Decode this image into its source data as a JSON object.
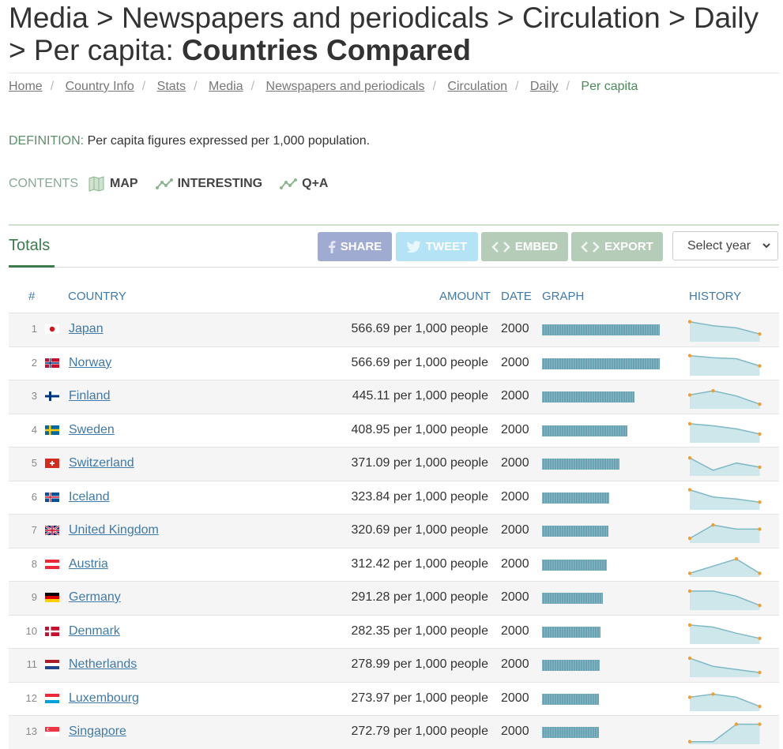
{
  "title": {
    "prefix": "Media > Newspapers and periodicals > Circulation > Daily > Per capita: ",
    "strong": "Countries Compared"
  },
  "breadcrumbs": [
    "Home",
    "Country Info",
    "Stats",
    "Media",
    "Newspapers and periodicals",
    "Circulation",
    "Daily"
  ],
  "breadcrumb_current": "Per capita",
  "definition": {
    "label": "DEFINITION:",
    "text": "Per capita figures expressed per 1,000 population."
  },
  "contents": {
    "label": "CONTENTS",
    "items": [
      "MAP",
      "INTERESTING",
      "Q+A"
    ]
  },
  "totals_label": "Totals",
  "buttons": {
    "share": "SHARE",
    "tweet": "TWEET",
    "embed": "EMBED",
    "export": "EXPORT"
  },
  "select_year": "Select year",
  "columns": {
    "num": "#",
    "country": "COUNTRY",
    "amount": "AMOUNT",
    "date": "DATE",
    "graph": "GRAPH",
    "history": "HISTORY"
  },
  "colors": {
    "accent": "#3d7a4c",
    "link": "#3f7aa8",
    "bar": "#6aa3b4",
    "share": "#a0abd1",
    "tweet": "#b3e3f5",
    "embed": "#b5cdb8"
  },
  "rows": [
    {
      "rank": "1",
      "country": "Japan",
      "flag": "japan",
      "value": 566.69,
      "amount": "566.69 per 1,000 people",
      "date": "2000",
      "history": [
        0.9,
        0.7,
        0.6,
        0.3
      ]
    },
    {
      "rank": "2",
      "country": "Norway",
      "flag": "norway",
      "value": 566.69,
      "amount": "566.69 per 1,000 people",
      "date": "2000",
      "history": [
        0.9,
        0.8,
        0.75,
        0.4
      ]
    },
    {
      "rank": "3",
      "country": "Finland",
      "flag": "finland",
      "value": 445.11,
      "amount": "445.11 per 1,000 people",
      "date": "2000",
      "history": [
        0.6,
        0.8,
        0.55,
        0.15
      ]
    },
    {
      "rank": "4",
      "country": "Sweden",
      "flag": "sweden",
      "value": 408.95,
      "amount": "408.95 per 1,000 people",
      "date": "2000",
      "history": [
        0.85,
        0.75,
        0.6,
        0.35
      ]
    },
    {
      "rank": "5",
      "country": "Switzerland",
      "flag": "switzerland",
      "value": 371.09,
      "amount": "371.09 per 1,000 people",
      "date": "2000",
      "history": [
        0.8,
        0.2,
        0.55,
        0.35
      ]
    },
    {
      "rank": "6",
      "country": "Iceland",
      "flag": "iceland",
      "value": 323.84,
      "amount": "323.84 per 1,000 people",
      "date": "2000",
      "history": [
        0.9,
        0.55,
        0.45,
        0.3
      ]
    },
    {
      "rank": "7",
      "country": "United Kingdom",
      "flag": "uk",
      "value": 320.69,
      "amount": "320.69 per 1,000 people",
      "date": "2000",
      "history": [
        0.15,
        0.8,
        0.6,
        0.6
      ]
    },
    {
      "rank": "8",
      "country": "Austria",
      "flag": "austria",
      "value": 312.42,
      "amount": "312.42 per 1,000 people",
      "date": "2000",
      "history": [
        0.1,
        0.45,
        0.8,
        0.1
      ]
    },
    {
      "rank": "9",
      "country": "Germany",
      "flag": "germany",
      "value": 291.28,
      "amount": "291.28 per 1,000 people",
      "date": "2000",
      "history": [
        0.85,
        0.85,
        0.6,
        0.15
      ]
    },
    {
      "rank": "10",
      "country": "Denmark",
      "flag": "denmark",
      "value": 282.35,
      "amount": "282.35 per 1,000 people",
      "date": "2000",
      "history": [
        0.85,
        0.75,
        0.45,
        0.2
      ]
    },
    {
      "rank": "11",
      "country": "Netherlands",
      "flag": "netherlands",
      "value": 278.99,
      "amount": "278.99 per 1,000 people",
      "date": "2000",
      "history": [
        0.85,
        0.45,
        0.3,
        0.15
      ]
    },
    {
      "rank": "12",
      "country": "Luxembourg",
      "flag": "luxembourg",
      "value": 273.97,
      "amount": "273.97 per 1,000 people",
      "date": "2000",
      "history": [
        0.6,
        0.75,
        0.6,
        0.15
      ]
    },
    {
      "rank": "13",
      "country": "Singapore",
      "flag": "singapore",
      "value": 272.79,
      "amount": "272.79 per 1,000 people",
      "date": "2000",
      "history": [
        0.05,
        0.05,
        0.9,
        0.9
      ]
    }
  ]
}
